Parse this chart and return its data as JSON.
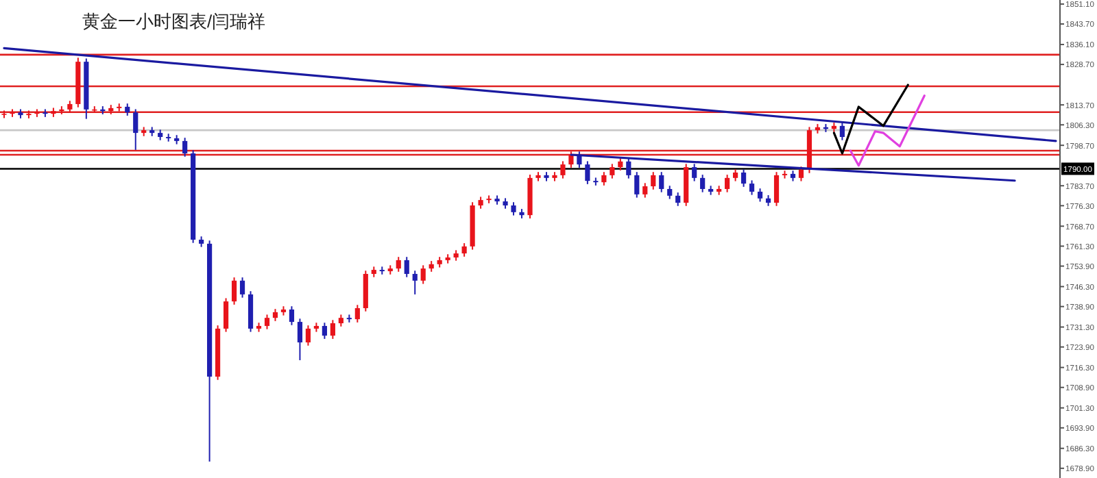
{
  "chart_data": {
    "type": "candlestick",
    "title": "黄金一小时图表/闫瑞祥",
    "categories": [
      null,
      null,
      null,
      null,
      null,
      null,
      null,
      null,
      null,
      null,
      null,
      null,
      null,
      null,
      null,
      null,
      null,
      null,
      null,
      null,
      null,
      null,
      null,
      null,
      null,
      null,
      null,
      null,
      null,
      null,
      null,
      null,
      null,
      null,
      null,
      null,
      null,
      null,
      null,
      null,
      null,
      null,
      null,
      null,
      null,
      null,
      null,
      null,
      null,
      null,
      null,
      null,
      null,
      null,
      null,
      null,
      null,
      null,
      null,
      null,
      null,
      null,
      null,
      null,
      null,
      null,
      null,
      null,
      null,
      null,
      null,
      null,
      null,
      null,
      null,
      null,
      null,
      null,
      null,
      null,
      null,
      null,
      null,
      null,
      null,
      null,
      null,
      null,
      null,
      null,
      null,
      null,
      null,
      null,
      null,
      null,
      null,
      null,
      null,
      null,
      null,
      null,
      null,
      null,
      null,
      null,
      null,
      null,
      null,
      null,
      null,
      null,
      null,
      null,
      null,
      null,
      null,
      null,
      null,
      null,
      null,
      null,
      null,
      null,
      null,
      null,
      null,
      null,
      null
    ],
    "ohlc": [
      [
        1810.0,
        1811.6,
        1808.8,
        1810.4
      ],
      [
        1810.4,
        1812.1,
        1809.2,
        1810.9
      ],
      [
        1810.9,
        1812.1,
        1808.7,
        1809.9
      ],
      [
        1809.9,
        1811.6,
        1808.7,
        1810.4
      ],
      [
        1810.4,
        1812.1,
        1809.2,
        1810.9
      ],
      [
        1810.9,
        1812.1,
        1809.2,
        1810.4
      ],
      [
        1810.4,
        1812.6,
        1809.2,
        1811.4
      ],
      [
        1811.4,
        1813.2,
        1810.2,
        1812.0
      ],
      [
        1812.0,
        1815.2,
        1810.8,
        1814.0
      ],
      [
        1814.0,
        1831.2,
        1812.8,
        1829.7
      ],
      [
        1829.7,
        1830.9,
        1808.5,
        1812.0
      ],
      [
        1812.0,
        1813.2,
        1810.8,
        1812.0
      ],
      [
        1812.0,
        1813.2,
        1810.2,
        1811.4
      ],
      [
        1811.4,
        1813.7,
        1810.2,
        1812.5
      ],
      [
        1812.5,
        1814.2,
        1811.3,
        1813.0
      ],
      [
        1813.0,
        1814.2,
        1809.7,
        1810.9
      ],
      [
        1810.9,
        1812.1,
        1797.0,
        1803.3
      ],
      [
        1803.3,
        1805.5,
        1802.1,
        1804.3
      ],
      [
        1804.3,
        1805.5,
        1802.1,
        1803.3
      ],
      [
        1803.3,
        1804.5,
        1800.6,
        1801.8
      ],
      [
        1801.8,
        1803.0,
        1800.1,
        1801.3
      ],
      [
        1801.3,
        1802.5,
        1799.1,
        1800.3
      ],
      [
        1800.3,
        1801.5,
        1794.5,
        1795.7
      ],
      [
        1795.7,
        1796.9,
        1762.5,
        1763.7
      ],
      [
        1763.7,
        1764.9,
        1761.0,
        1762.2
      ],
      [
        1762.2,
        1763.4,
        1681.4,
        1712.9
      ],
      [
        1712.9,
        1731.9,
        1711.7,
        1730.7
      ],
      [
        1730.7,
        1742.0,
        1729.5,
        1740.8
      ],
      [
        1740.8,
        1749.7,
        1739.6,
        1748.5
      ],
      [
        1748.5,
        1749.7,
        1742.2,
        1743.4
      ],
      [
        1743.4,
        1744.6,
        1729.5,
        1730.7
      ],
      [
        1730.7,
        1732.9,
        1729.5,
        1731.7
      ],
      [
        1731.7,
        1735.9,
        1730.5,
        1734.7
      ],
      [
        1734.7,
        1738.0,
        1733.5,
        1736.8
      ],
      [
        1736.8,
        1739.0,
        1735.6,
        1737.8
      ],
      [
        1737.8,
        1739.0,
        1732.0,
        1733.2
      ],
      [
        1733.2,
        1734.4,
        1719.0,
        1725.6
      ],
      [
        1725.6,
        1731.9,
        1724.4,
        1730.7
      ],
      [
        1730.7,
        1732.9,
        1729.5,
        1731.7
      ],
      [
        1731.7,
        1732.9,
        1726.9,
        1728.1
      ],
      [
        1728.1,
        1733.9,
        1726.9,
        1732.7
      ],
      [
        1732.7,
        1735.9,
        1731.5,
        1734.7
      ],
      [
        1734.7,
        1735.9,
        1733.0,
        1734.2
      ],
      [
        1734.2,
        1739.5,
        1733.0,
        1738.3
      ],
      [
        1738.3,
        1752.2,
        1737.1,
        1751.0
      ],
      [
        1751.0,
        1753.7,
        1749.8,
        1752.5
      ],
      [
        1752.5,
        1753.7,
        1750.8,
        1752.0
      ],
      [
        1752.0,
        1754.2,
        1750.8,
        1753.0
      ],
      [
        1753.0,
        1757.3,
        1751.8,
        1756.1
      ],
      [
        1756.1,
        1757.3,
        1749.8,
        1751.0
      ],
      [
        1751.0,
        1752.2,
        1743.4,
        1748.5
      ],
      [
        1748.5,
        1754.2,
        1747.3,
        1753.0
      ],
      [
        1753.0,
        1755.8,
        1751.8,
        1754.6
      ],
      [
        1754.6,
        1757.3,
        1753.4,
        1756.1
      ],
      [
        1756.1,
        1758.3,
        1754.9,
        1757.1
      ],
      [
        1757.1,
        1759.8,
        1755.9,
        1758.6
      ],
      [
        1758.6,
        1762.4,
        1757.4,
        1761.2
      ],
      [
        1761.2,
        1777.6,
        1760.0,
        1776.4
      ],
      [
        1776.4,
        1779.6,
        1775.2,
        1778.4
      ],
      [
        1778.4,
        1780.1,
        1777.2,
        1778.9
      ],
      [
        1778.9,
        1780.1,
        1776.7,
        1777.9
      ],
      [
        1777.9,
        1779.1,
        1775.2,
        1776.4
      ],
      [
        1776.4,
        1777.6,
        1772.7,
        1773.9
      ],
      [
        1773.9,
        1775.1,
        1771.6,
        1772.8
      ],
      [
        1772.8,
        1787.8,
        1771.6,
        1786.6
      ],
      [
        1786.6,
        1788.8,
        1785.4,
        1787.6
      ],
      [
        1787.6,
        1788.8,
        1785.4,
        1786.6
      ],
      [
        1786.6,
        1788.8,
        1785.4,
        1787.6
      ],
      [
        1787.6,
        1792.8,
        1786.4,
        1791.6
      ],
      [
        1791.6,
        1796.4,
        1790.4,
        1795.2
      ],
      [
        1795.2,
        1796.4,
        1790.4,
        1791.6
      ],
      [
        1791.6,
        1792.8,
        1784.3,
        1785.5
      ],
      [
        1785.5,
        1786.7,
        1783.8,
        1785.0
      ],
      [
        1785.0,
        1788.8,
        1783.8,
        1787.6
      ],
      [
        1787.6,
        1791.8,
        1786.4,
        1790.6
      ],
      [
        1790.6,
        1793.9,
        1789.4,
        1792.7
      ],
      [
        1792.7,
        1793.9,
        1786.4,
        1787.6
      ],
      [
        1787.6,
        1788.8,
        1779.3,
        1780.5
      ],
      [
        1780.5,
        1784.7,
        1779.3,
        1783.5
      ],
      [
        1783.5,
        1788.8,
        1782.3,
        1787.6
      ],
      [
        1787.6,
        1788.8,
        1781.3,
        1782.5
      ],
      [
        1782.5,
        1783.7,
        1778.8,
        1780.0
      ],
      [
        1780.0,
        1781.2,
        1776.2,
        1777.4
      ],
      [
        1777.4,
        1791.8,
        1776.2,
        1790.6
      ],
      [
        1790.6,
        1791.8,
        1785.4,
        1786.6
      ],
      [
        1786.6,
        1787.8,
        1781.3,
        1782.5
      ],
      [
        1782.5,
        1783.7,
        1780.3,
        1781.5
      ],
      [
        1781.5,
        1783.7,
        1780.3,
        1782.5
      ],
      [
        1782.5,
        1787.8,
        1781.3,
        1786.6
      ],
      [
        1786.6,
        1789.8,
        1785.4,
        1788.6
      ],
      [
        1788.6,
        1789.8,
        1783.3,
        1784.5
      ],
      [
        1784.5,
        1785.7,
        1780.3,
        1781.5
      ],
      [
        1781.5,
        1782.7,
        1777.8,
        1779.0
      ],
      [
        1779.0,
        1780.2,
        1776.2,
        1777.4
      ],
      [
        1777.4,
        1788.8,
        1776.2,
        1787.6
      ],
      [
        1787.6,
        1789.3,
        1786.4,
        1788.1
      ],
      [
        1788.1,
        1789.3,
        1785.4,
        1786.6
      ],
      [
        1786.6,
        1790.8,
        1785.4,
        1789.6
      ],
      [
        1789.6,
        1805.5,
        1788.4,
        1804.3
      ],
      [
        1804.3,
        1806.6,
        1803.1,
        1805.4
      ],
      [
        1805.4,
        1806.6,
        1803.6,
        1804.8
      ],
      [
        1804.8,
        1807.1,
        1803.6,
        1805.9
      ],
      [
        1805.9,
        1807.1,
        1800.6,
        1801.8
      ],
      null,
      null,
      null,
      null,
      null,
      null,
      null,
      null,
      null,
      null,
      null,
      null,
      null,
      null,
      null,
      null,
      null,
      null,
      null,
      null,
      null,
      null,
      null,
      null,
      null,
      null
    ],
    "series": [
      {
        "type": "line",
        "color": "#1a1aa0",
        "values": [
          1834.7,
          null,
          null,
          null,
          null,
          null,
          null,
          null,
          null,
          null,
          null,
          null,
          null,
          null,
          null,
          null,
          null,
          null,
          null,
          null,
          null,
          null,
          null,
          null,
          null,
          null,
          null,
          null,
          null,
          null,
          null,
          null,
          null,
          null,
          null,
          null,
          null,
          null,
          null,
          null,
          null,
          null,
          null,
          null,
          null,
          null,
          null,
          null,
          null,
          null,
          null,
          null,
          null,
          null,
          null,
          null,
          null,
          null,
          null,
          null,
          null,
          null,
          null,
          null,
          null,
          null,
          null,
          null,
          null,
          null,
          null,
          null,
          null,
          null,
          null,
          null,
          null,
          null,
          null,
          null,
          null,
          null,
          null,
          null,
          null,
          null,
          null,
          null,
          null,
          null,
          null,
          null,
          null,
          null,
          null,
          null,
          null,
          null,
          null,
          null,
          null,
          null,
          null,
          null,
          null,
          null,
          null,
          null,
          null,
          null,
          null,
          null,
          null,
          null,
          null,
          null,
          null,
          null,
          null,
          null,
          null,
          null,
          null,
          null,
          null,
          null,
          null,
          null,
          1800.3
        ]
      },
      {
        "type": "line",
        "color": "#1a1aa0",
        "values": [
          null,
          null,
          null,
          null,
          null,
          null,
          null,
          null,
          null,
          null,
          null,
          null,
          null,
          null,
          null,
          null,
          null,
          null,
          null,
          null,
          null,
          null,
          null,
          null,
          null,
          null,
          null,
          null,
          null,
          null,
          null,
          null,
          null,
          null,
          null,
          null,
          null,
          null,
          null,
          null,
          null,
          null,
          null,
          null,
          null,
          null,
          null,
          null,
          null,
          null,
          null,
          null,
          null,
          null,
          null,
          null,
          null,
          null,
          null,
          null,
          null,
          null,
          null,
          null,
          null,
          null,
          null,
          null,
          null,
          1795.2,
          null,
          null,
          null,
          null,
          null,
          null,
          null,
          null,
          null,
          null,
          null,
          null,
          null,
          null,
          null,
          null,
          null,
          null,
          null,
          null,
          null,
          null,
          null,
          null,
          null,
          null,
          null,
          null,
          null,
          null,
          null,
          null,
          null,
          null,
          null,
          null,
          null,
          null,
          null,
          null,
          null,
          null,
          null,
          null,
          null,
          null,
          null,
          null,
          null,
          null,
          null,
          null,
          null,
          1785.6,
          null,
          null,
          null,
          null,
          null
        ]
      },
      {
        "type": "line",
        "color": "#000000",
        "values": [
          null,
          null,
          null,
          null,
          null,
          null,
          null,
          null,
          null,
          null,
          null,
          null,
          null,
          null,
          null,
          null,
          null,
          null,
          null,
          null,
          null,
          null,
          null,
          null,
          null,
          null,
          null,
          null,
          null,
          null,
          null,
          null,
          null,
          null,
          null,
          null,
          null,
          null,
          null,
          null,
          null,
          null,
          null,
          null,
          null,
          null,
          null,
          null,
          null,
          null,
          null,
          null,
          null,
          null,
          null,
          null,
          null,
          null,
          null,
          null,
          null,
          null,
          null,
          null,
          null,
          null,
          null,
          null,
          null,
          null,
          null,
          null,
          null,
          null,
          null,
          null,
          null,
          null,
          null,
          null,
          null,
          null,
          null,
          null,
          null,
          null,
          null,
          null,
          null,
          null,
          null,
          null,
          null,
          null,
          null,
          null,
          null,
          null,
          null,
          null,
          null,
          1803.3,
          1795.7,
          null,
          1813.0,
          null,
          null,
          1805.9,
          null,
          null,
          1821.1,
          null,
          null,
          null,
          null,
          null,
          null,
          null,
          null,
          null,
          null,
          null,
          null,
          null,
          null,
          null,
          null,
          null,
          null
        ]
      },
      {
        "type": "line",
        "color": "#e040e0",
        "values": [
          null,
          null,
          null,
          null,
          null,
          null,
          null,
          null,
          null,
          null,
          null,
          null,
          null,
          null,
          null,
          null,
          null,
          null,
          null,
          null,
          null,
          null,
          null,
          null,
          null,
          null,
          null,
          null,
          null,
          null,
          null,
          null,
          null,
          null,
          null,
          null,
          null,
          null,
          null,
          null,
          null,
          null,
          null,
          null,
          null,
          null,
          null,
          null,
          null,
          null,
          null,
          null,
          null,
          null,
          null,
          null,
          null,
          null,
          null,
          null,
          null,
          null,
          null,
          null,
          null,
          null,
          null,
          null,
          null,
          null,
          null,
          null,
          null,
          null,
          null,
          null,
          null,
          null,
          null,
          null,
          null,
          null,
          null,
          null,
          null,
          null,
          null,
          null,
          null,
          null,
          null,
          null,
          null,
          null,
          null,
          null,
          null,
          null,
          null,
          null,
          null,
          null,
          null,
          1796.7,
          1791.2,
          null,
          1803.9,
          1803.3,
          null,
          1798.3,
          null,
          null,
          1817.1,
          null,
          null,
          null,
          null,
          null,
          null,
          null,
          null,
          null,
          null,
          null,
          null,
          null,
          null,
          null,
          null
        ]
      }
    ],
    "ylim": [
      1675.3,
      1852.6
    ],
    "yticks": [
      {
        "value": 1851.1,
        "label": "1851.10"
      },
      {
        "value": 1843.7,
        "label": "1843.70"
      },
      {
        "value": 1836.1,
        "label": "1836.10"
      },
      {
        "value": 1828.7,
        "label": "1828.70"
      },
      {
        "value": 1813.7,
        "label": "1813.70"
      },
      {
        "value": 1806.3,
        "label": "1806.30"
      },
      {
        "value": 1798.7,
        "label": "1798.70"
      },
      {
        "value": 1783.7,
        "label": "1783.70"
      },
      {
        "value": 1776.3,
        "label": "1776.30"
      },
      {
        "value": 1768.7,
        "label": "1768.70"
      },
      {
        "value": 1761.3,
        "label": "1761.30"
      },
      {
        "value": 1753.9,
        "label": "1753.90"
      },
      {
        "value": 1746.3,
        "label": "1746.30"
      },
      {
        "value": 1738.9,
        "label": "1738.90"
      },
      {
        "value": 1731.3,
        "label": "1731.30"
      },
      {
        "value": 1723.9,
        "label": "1723.90"
      },
      {
        "value": 1716.3,
        "label": "1716.30"
      },
      {
        "value": 1708.9,
        "label": "1708.90"
      },
      {
        "value": 1701.3,
        "label": "1701.30"
      },
      {
        "value": 1693.9,
        "label": "1693.90"
      },
      {
        "value": 1686.3,
        "label": "1686.30"
      },
      {
        "value": 1678.9,
        "label": "1678.90"
      }
    ],
    "ref_lines": [
      {
        "axis": "y",
        "value": 1832.3,
        "color": "#e02020"
      },
      {
        "axis": "y",
        "value": 1820.6,
        "color": "#e02020"
      },
      {
        "axis": "y",
        "value": 1811.0,
        "color": "#e02020"
      },
      {
        "axis": "y",
        "value": 1804.3,
        "color": "#c8c8c8"
      },
      {
        "axis": "y",
        "value": 1796.7,
        "color": "#e02020"
      },
      {
        "axis": "y",
        "value": 1795.2,
        "color": "#e02020"
      },
      {
        "axis": "y",
        "value": 1790.0,
        "color": "#000000",
        "label": "1790.00"
      }
    ],
    "tick_labels": "y",
    "grid": false,
    "marker": "none"
  }
}
